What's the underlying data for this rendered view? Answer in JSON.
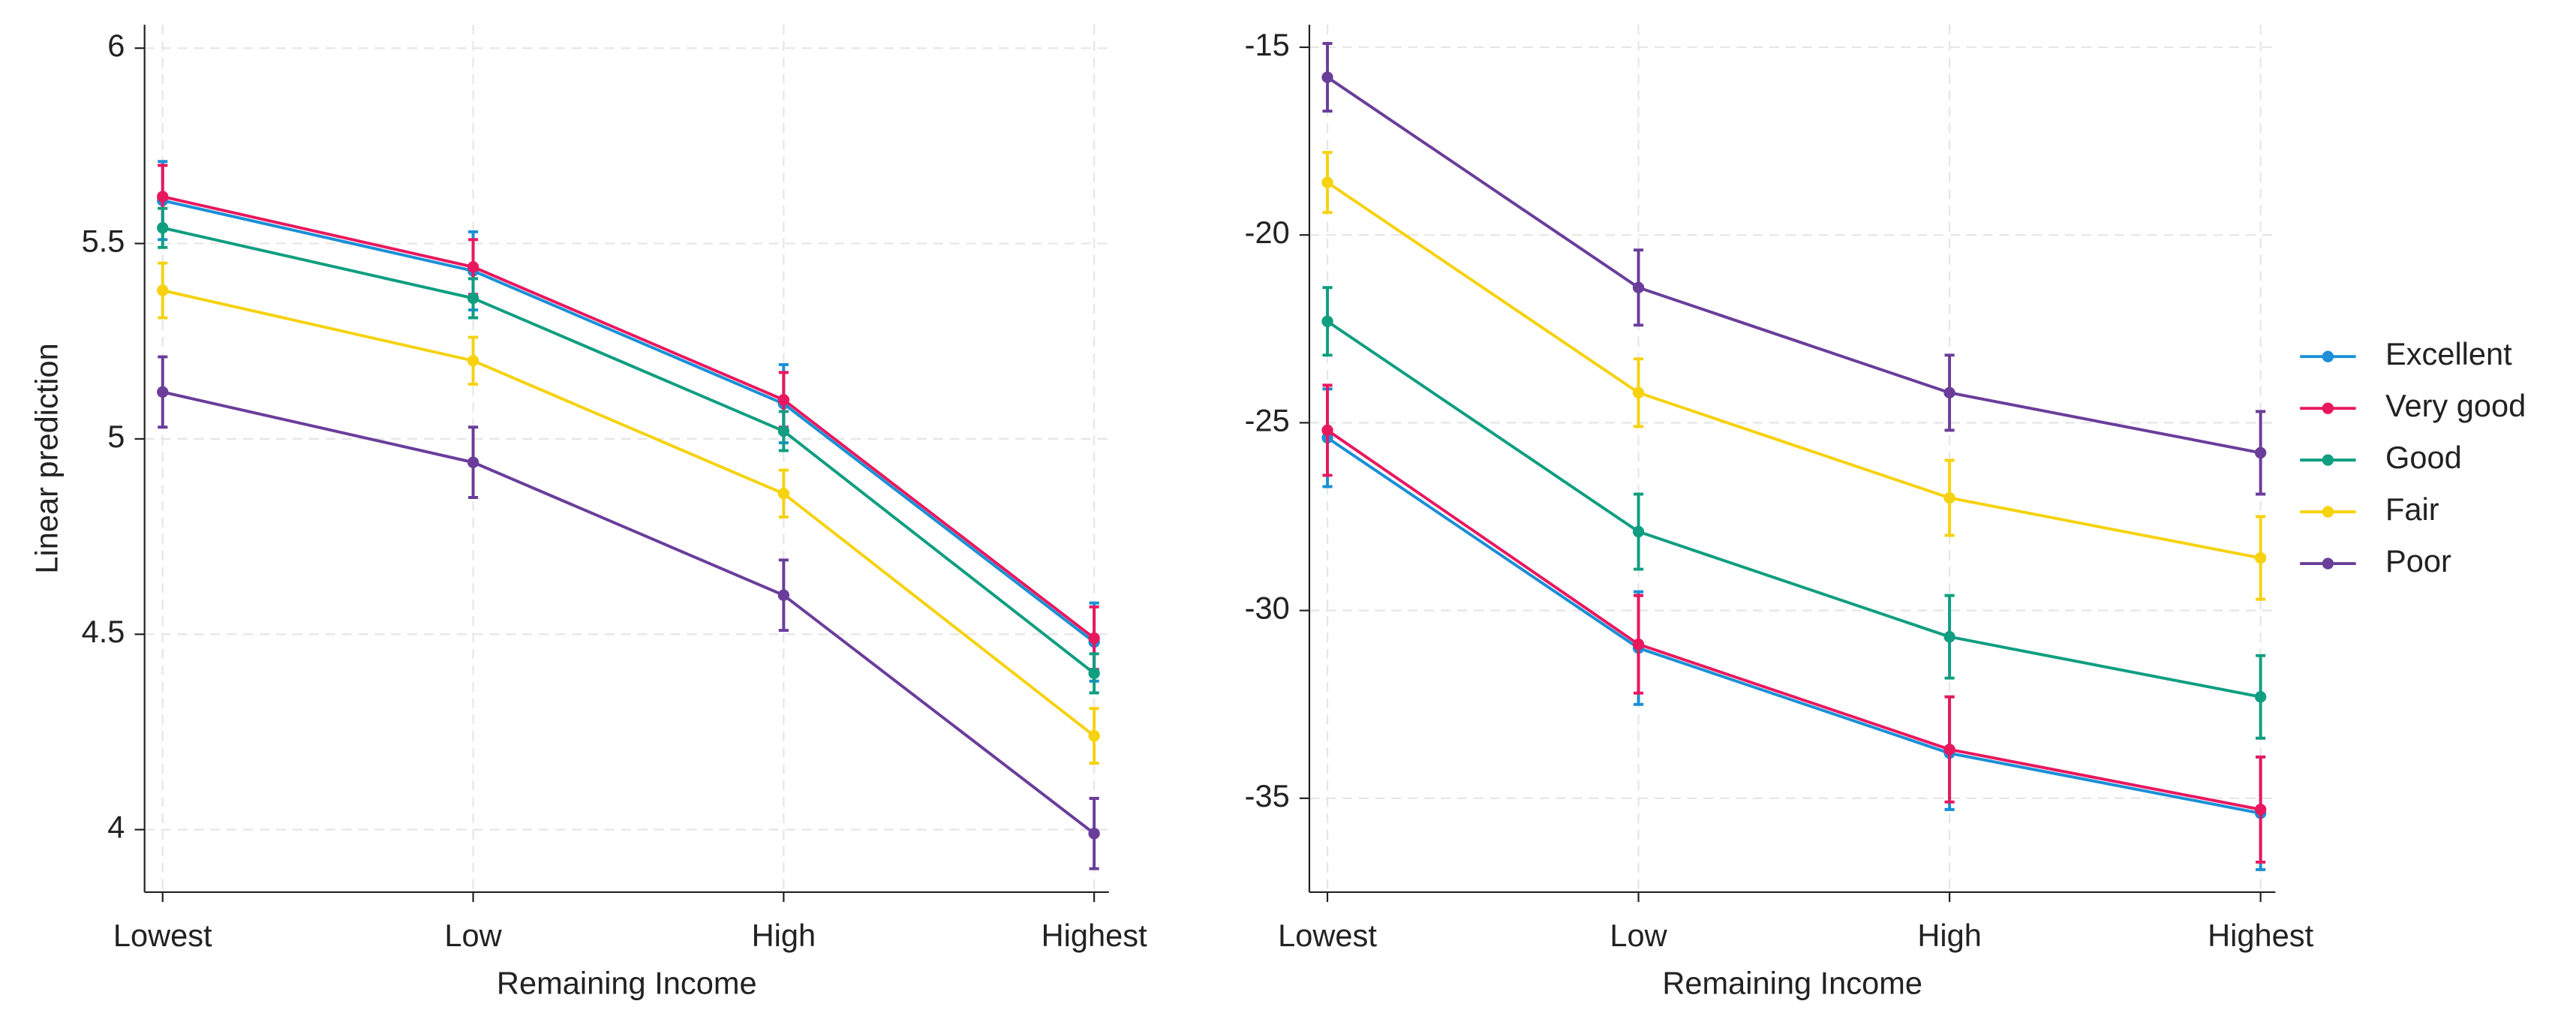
{
  "chart_data": [
    {
      "type": "line",
      "categories": [
        "Lowest",
        "Low",
        "High",
        "Highest"
      ],
      "xlabel": "Remaining Income",
      "ylabel": "Linear prediction",
      "ylim": [
        3.84,
        6.06
      ],
      "yticks": [
        4,
        4.5,
        5,
        5.5,
        6
      ],
      "grid": true,
      "series": [
        {
          "color": "#1a8fd6",
          "values": [
            5.61,
            5.43,
            5.09,
            4.48
          ],
          "errors": [
            0.1,
            0.1,
            0.1,
            0.1
          ]
        },
        {
          "color": "#e8185e",
          "values": [
            5.62,
            5.44,
            5.1,
            4.49
          ],
          "errors": [
            0.08,
            0.07,
            0.07,
            0.08
          ]
        },
        {
          "color": "#0f9e80",
          "values": [
            5.54,
            5.36,
            5.02,
            4.4
          ],
          "errors": [
            0.05,
            0.05,
            0.05,
            0.05
          ]
        },
        {
          "color": "#f6d20f",
          "values": [
            5.38,
            5.2,
            4.86,
            4.24
          ],
          "errors": [
            0.07,
            0.06,
            0.06,
            0.07
          ]
        },
        {
          "color": "#6a3d9a",
          "values": [
            5.12,
            4.94,
            4.6,
            3.99
          ],
          "errors": [
            0.09,
            0.09,
            0.09,
            0.09
          ]
        }
      ]
    },
    {
      "type": "line",
      "categories": [
        "Lowest",
        "Low",
        "High",
        "Highest"
      ],
      "xlabel": "Remaining Income",
      "ylim": [
        -37.5,
        -14.4
      ],
      "yticks": [
        -35,
        -30,
        -25,
        -20,
        -15
      ],
      "grid": true,
      "legend": "right",
      "series": [
        {
          "name": "Excellent",
          "color": "#1a8fd6",
          "values": [
            -25.4,
            -31.0,
            -33.8,
            -35.4
          ],
          "errors": [
            1.3,
            1.5,
            1.5,
            1.5
          ]
        },
        {
          "name": "Very good",
          "color": "#e8185e",
          "values": [
            -25.2,
            -30.9,
            -33.7,
            -35.3
          ],
          "errors": [
            1.2,
            1.3,
            1.4,
            1.4
          ]
        },
        {
          "name": "Good",
          "color": "#0f9e80",
          "values": [
            -22.3,
            -27.9,
            -30.7,
            -32.3
          ],
          "errors": [
            0.9,
            1.0,
            1.1,
            1.1
          ]
        },
        {
          "name": "Fair",
          "color": "#f6d20f",
          "values": [
            -18.6,
            -24.2,
            -27.0,
            -28.6
          ],
          "errors": [
            0.8,
            0.9,
            1.0,
            1.1
          ]
        },
        {
          "name": "Poor",
          "color": "#6a3d9a",
          "values": [
            -15.8,
            -21.4,
            -24.2,
            -25.8
          ],
          "errors": [
            0.9,
            1.0,
            1.0,
            1.1
          ]
        }
      ]
    }
  ]
}
